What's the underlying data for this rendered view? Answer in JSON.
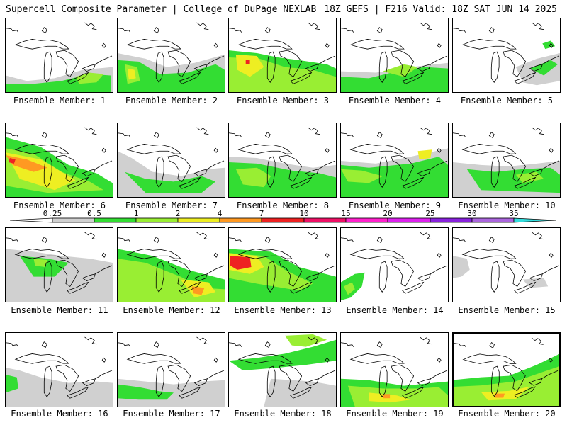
{
  "header": {
    "left": "Supercell Composite Parameter | College of DuPage NEXLAB",
    "right": "18Z GEFS | F216 Valid: 18Z SAT JUN 14 2025"
  },
  "colors": {
    "lt_0_25": "#ffffff",
    "0.25-0.5": "#d0d0d0",
    "0.5-1": "#33dd33",
    "1-2": "#99ee33",
    "2-4": "#eeee22",
    "4-7": "#ff9922",
    "7-10": "#ee2222",
    "10-15": "#ee1166",
    "15-20": "#ff22cc",
    "20-25": "#dd22ee",
    "25-30": "#8822dd",
    "30-35": "#aa66dd",
    "35+": "#33dddd"
  },
  "colorbar": {
    "ticks": [
      "0.25",
      "0.5",
      "1",
      "2",
      "4",
      "7",
      "10",
      "15",
      "20",
      "25",
      "30",
      "35"
    ]
  },
  "members": [
    {
      "label": "Ensemble Member: 1",
      "selected": false
    },
    {
      "label": "Ensemble Member: 2",
      "selected": false
    },
    {
      "label": "Ensemble Member: 3",
      "selected": false
    },
    {
      "label": "Ensemble Member: 4",
      "selected": false
    },
    {
      "label": "Ensemble Member: 5",
      "selected": false
    },
    {
      "label": "Ensemble Member: 6",
      "selected": false
    },
    {
      "label": "Ensemble Member: 7",
      "selected": false
    },
    {
      "label": "Ensemble Member: 8",
      "selected": false
    },
    {
      "label": "Ensemble Member: 9",
      "selected": false
    },
    {
      "label": "Ensemble Member: 10",
      "selected": false
    },
    {
      "label": "Ensemble Member: 11",
      "selected": false
    },
    {
      "label": "Ensemble Member: 12",
      "selected": false
    },
    {
      "label": "Ensemble Member: 13",
      "selected": false
    },
    {
      "label": "Ensemble Member: 14",
      "selected": false
    },
    {
      "label": "Ensemble Member: 15",
      "selected": false
    },
    {
      "label": "Ensemble Member: 16",
      "selected": false
    },
    {
      "label": "Ensemble Member: 17",
      "selected": false
    },
    {
      "label": "Ensemble Member: 18",
      "selected": false
    },
    {
      "label": "Ensemble Member: 19",
      "selected": false
    },
    {
      "label": "Ensemble Member: 20",
      "selected": true
    }
  ]
}
